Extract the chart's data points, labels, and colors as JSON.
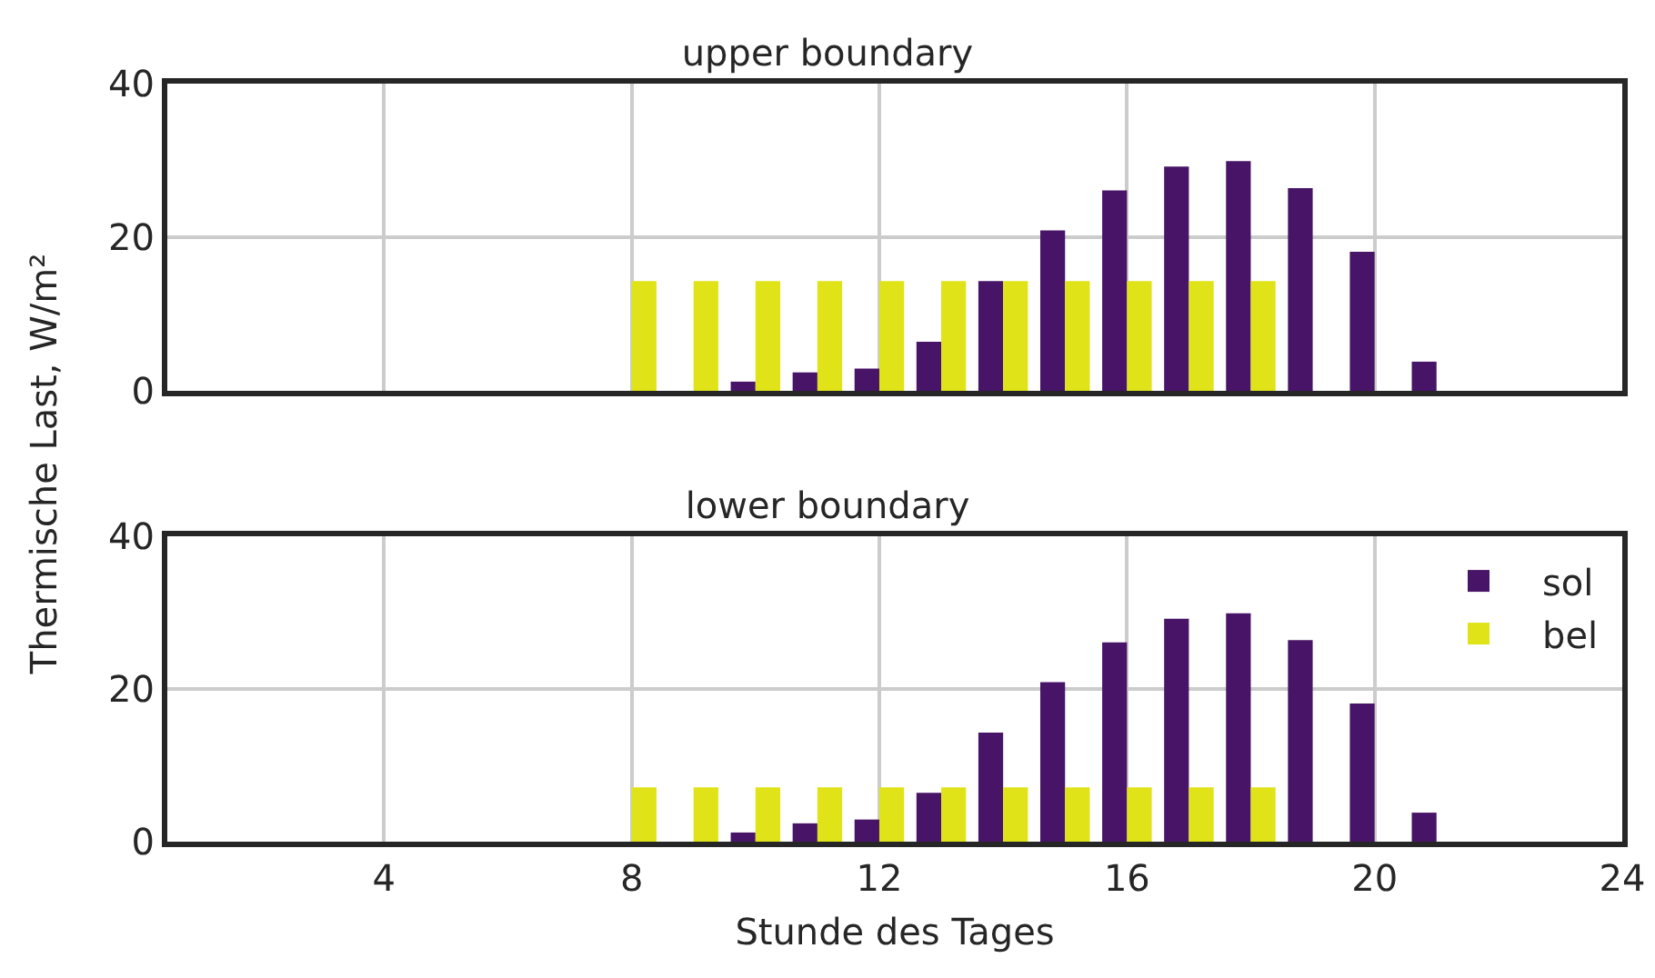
{
  "chart_data": [
    {
      "type": "bar",
      "title": "upper boundary",
      "ylabel": "Thermische Last, W/m²",
      "x": [
        1,
        2,
        3,
        4,
        5,
        6,
        7,
        8,
        9,
        10,
        11,
        12,
        13,
        14,
        15,
        16,
        17,
        18,
        19,
        20,
        21,
        22,
        23,
        24
      ],
      "series": [
        {
          "color": "#481467",
          "values": [
            0,
            0,
            0,
            0,
            0,
            0,
            0,
            0,
            0,
            1.2,
            2.4,
            2.9,
            6.4,
            14.3,
            20.9,
            26.1,
            29.2,
            29.9,
            26.4,
            18.1,
            3.8,
            0,
            0,
            0
          ]
        },
        {
          "color": "#dfe318",
          "values": [
            0,
            0,
            0,
            0,
            0,
            0,
            0,
            14.3,
            14.3,
            14.3,
            14.3,
            14.3,
            14.3,
            14.3,
            14.3,
            14.3,
            14.3,
            14.3,
            0,
            0,
            0,
            0,
            0,
            0
          ]
        }
      ],
      "xlim": [
        0.5,
        24
      ],
      "xticks": [
        4,
        8,
        12,
        16,
        20,
        24
      ],
      "ylim": [
        0,
        40
      ],
      "yticks": [
        0,
        20,
        40
      ],
      "grid": true,
      "legend": false,
      "tick_labels": "y"
    },
    {
      "type": "bar",
      "title": "lower boundary",
      "xlabel": "Stunde des Tages",
      "x": [
        1,
        2,
        3,
        4,
        5,
        6,
        7,
        8,
        9,
        10,
        11,
        12,
        13,
        14,
        15,
        16,
        17,
        18,
        19,
        20,
        21,
        22,
        23,
        24
      ],
      "series": [
        {
          "name": "sol",
          "color": "#481467",
          "values": [
            0,
            0,
            0,
            0,
            0,
            0,
            0,
            0,
            0,
            1.2,
            2.4,
            2.9,
            6.4,
            14.3,
            20.9,
            26.1,
            29.2,
            29.9,
            26.4,
            18.1,
            3.8,
            0,
            0,
            0
          ]
        },
        {
          "name": "bel",
          "color": "#dfe318",
          "values": [
            0,
            0,
            0,
            0,
            0,
            0,
            0,
            7.1,
            7.1,
            7.1,
            7.1,
            7.1,
            7.1,
            7.1,
            7.1,
            7.1,
            7.1,
            7.1,
            0,
            0,
            0,
            0,
            0,
            0
          ]
        }
      ],
      "xlim": [
        0.5,
        24
      ],
      "xticks": [
        4,
        8,
        12,
        16,
        20,
        24
      ],
      "ylim": [
        0,
        40
      ],
      "yticks": [
        0,
        20,
        40
      ],
      "grid": true,
      "legend": "top right"
    }
  ]
}
